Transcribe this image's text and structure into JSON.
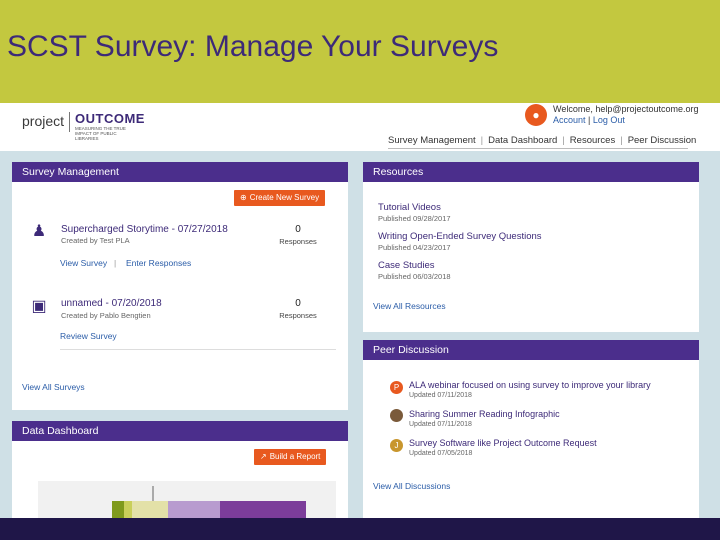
{
  "slide": {
    "title": "SCST Survey: Manage Your Surveys",
    "band_color": "#c3c83f",
    "footer_color": "#1f1648"
  },
  "header": {
    "logo_project": "project",
    "logo_outcome": "OUTCOME",
    "logo_tagline": "MEASURING THE TRUE IMPACT OF PUBLIC LIBRARIES",
    "welcome": "Welcome, help@projectoutcome.org",
    "account_link": "Account",
    "logout_link": "Log Out",
    "nav": [
      "Survey Management",
      "Data Dashboard",
      "Resources",
      "Peer Discussion"
    ]
  },
  "survey_management": {
    "title": "Survey Management",
    "create_button": "Create New Survey",
    "surveys": [
      {
        "icon": "people-icon",
        "title": "Supercharged Storytime - 07/27/2018",
        "created_by": "Created by Test PLA",
        "responses": "0",
        "responses_label": "Responses",
        "links": [
          "View Survey",
          "Enter Responses"
        ]
      },
      {
        "icon": "laptop-icon",
        "title": "unnamed - 07/20/2018",
        "created_by": "Created by Pablo Bengtien",
        "responses": "0",
        "responses_label": "Responses",
        "links": [
          "Review Survey"
        ]
      }
    ],
    "view_all": "View All Surveys"
  },
  "resources": {
    "title": "Resources",
    "items": [
      {
        "title": "Tutorial Videos",
        "date": "Published 09/28/2017"
      },
      {
        "title": "Writing Open-Ended Survey Questions",
        "date": "Published 04/23/2017"
      },
      {
        "title": "Case Studies",
        "date": "Published 06/03/2018"
      }
    ],
    "view_all": "View All Resources"
  },
  "peer_discussion": {
    "title": "Peer Discussion",
    "items": [
      {
        "avatar": "P",
        "avatar_color": "#e8591f",
        "title": "ALA webinar focused on using survey to improve your library",
        "date": "Updated 07/11/2018"
      },
      {
        "avatar": "",
        "avatar_color": "#7a5a3a",
        "title": "Sharing Summer Reading Infographic",
        "date": "Updated 07/11/2018"
      },
      {
        "avatar": "J",
        "avatar_color": "#c8962e",
        "title": "Survey Software like Project Outcome Request",
        "date": "Updated 07/05/2018"
      }
    ],
    "view_all": "View All Discussions"
  },
  "data_dashboard": {
    "title": "Data Dashboard",
    "report_button": "Build a Report"
  },
  "colors": {
    "purple": "#4b2e8c",
    "orange": "#e8591f",
    "link_blue": "#2b5da8",
    "background": "#cfe0e6"
  }
}
